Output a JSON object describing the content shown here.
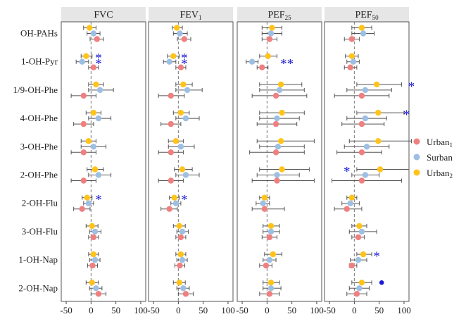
{
  "chart_data": {
    "type": "forest",
    "rows": [
      "OH-PAHs",
      "1-OH-Pyr",
      "1/9-OH-Phe",
      "4-OH-Phe",
      "3-OH-Phe",
      "2-OH-Phe",
      "2-OH-Flu",
      "3-OH-Flu",
      "1-OH-Nap",
      "2-OH-Nap"
    ],
    "x_ticks": [
      -50,
      0,
      50,
      100
    ],
    "xlim": [
      -60,
      110
    ],
    "colors": {
      "Urban1": "#f08080",
      "Surban": "#9dbfe3",
      "Urban2": "#ffc31a",
      "star": "#1a1ad6"
    },
    "legend": [
      {
        "key": "Urban1",
        "base": "Urban",
        "sub": "1"
      },
      {
        "key": "Surban",
        "base": "Surban",
        "sub": ""
      },
      {
        "key": "Urban2",
        "base": "Urban",
        "sub": "2"
      }
    ],
    "panels": [
      {
        "title": "FVC",
        "title_sub": "",
        "series": {
          "Urban2": [
            [
              -3,
              -15,
              10
            ],
            [
              -10,
              -20,
              2
            ],
            [
              10,
              -5,
              25
            ],
            [
              5,
              -10,
              20
            ],
            [
              -5,
              -20,
              10
            ],
            [
              8,
              -8,
              25
            ],
            [
              -8,
              -18,
              2
            ],
            [
              2,
              -10,
              14
            ],
            [
              5,
              -5,
              15
            ],
            [
              2,
              -10,
              15
            ]
          ],
          "Surban": [
            [
              5,
              -8,
              18
            ],
            [
              -18,
              -30,
              -5
            ],
            [
              18,
              -5,
              45
            ],
            [
              15,
              -5,
              40
            ],
            [
              5,
              -20,
              30
            ],
            [
              15,
              -5,
              40
            ],
            [
              -5,
              -15,
              5
            ],
            [
              8,
              -3,
              20
            ],
            [
              8,
              -3,
              18
            ],
            [
              10,
              -3,
              22
            ]
          ],
          "Urban1": [
            [
              12,
              -2,
              25
            ],
            [
              5,
              -5,
              15
            ],
            [
              -15,
              -40,
              10
            ],
            [
              -15,
              -35,
              5
            ],
            [
              -15,
              -40,
              10
            ],
            [
              -15,
              -40,
              10
            ],
            [
              -18,
              -35,
              -2
            ],
            [
              5,
              -5,
              15
            ],
            [
              3,
              -7,
              13
            ],
            [
              15,
              0,
              30
            ]
          ]
        },
        "stars": [
          {
            "row": 1,
            "series": "Urban2",
            "symbol": "*",
            "x": 15
          },
          {
            "row": 1,
            "series": "Surban",
            "symbol": "*",
            "x": 15
          },
          {
            "row": 6,
            "series": "Urban2",
            "symbol": "*",
            "x": 15
          }
        ]
      },
      {
        "title": "FEV",
        "title_sub": "1",
        "series": {
          "Urban2": [
            [
              -3,
              -12,
              8
            ],
            [
              -10,
              -22,
              2
            ],
            [
              10,
              -5,
              28
            ],
            [
              5,
              -10,
              22
            ],
            [
              -5,
              -20,
              10
            ],
            [
              8,
              -8,
              28
            ],
            [
              -8,
              -18,
              2
            ],
            [
              2,
              -10,
              14
            ],
            [
              5,
              -5,
              15
            ],
            [
              2,
              -10,
              14
            ]
          ],
          "Surban": [
            [
              3,
              -10,
              18
            ],
            [
              -18,
              -30,
              -5
            ],
            [
              18,
              -5,
              48
            ],
            [
              15,
              -5,
              42
            ],
            [
              5,
              -20,
              32
            ],
            [
              15,
              -5,
              42
            ],
            [
              -5,
              -15,
              5
            ],
            [
              8,
              -3,
              20
            ],
            [
              8,
              -3,
              18
            ],
            [
              10,
              -3,
              22
            ]
          ],
          "Urban1": [
            [
              12,
              -2,
              25
            ],
            [
              5,
              -5,
              15
            ],
            [
              -15,
              -40,
              12
            ],
            [
              -15,
              -35,
              5
            ],
            [
              -15,
              -40,
              10
            ],
            [
              -15,
              -40,
              10
            ],
            [
              -18,
              -35,
              -2
            ],
            [
              5,
              -5,
              15
            ],
            [
              3,
              -7,
              13
            ],
            [
              15,
              0,
              30
            ]
          ]
        },
        "stars": [
          {
            "row": 1,
            "series": "Urban2",
            "symbol": "*",
            "x": 12
          },
          {
            "row": 1,
            "series": "Surban",
            "symbol": "*",
            "x": 12
          },
          {
            "row": 6,
            "series": "Urban2",
            "symbol": "*",
            "x": 12
          }
        ]
      },
      {
        "title": "PEF",
        "title_sub": "25",
        "series": {
          "Urban2": [
            [
              10,
              -10,
              30
            ],
            [
              2,
              -15,
              20
            ],
            [
              28,
              -15,
              70
            ],
            [
              30,
              -15,
              75
            ],
            [
              28,
              -20,
              95
            ],
            [
              30,
              -15,
              85
            ],
            [
              -5,
              -15,
              5
            ],
            [
              8,
              -8,
              25
            ],
            [
              12,
              -5,
              30
            ],
            [
              8,
              -8,
              25
            ]
          ],
          "Surban": [
            [
              8,
              -10,
              30
            ],
            [
              -30,
              -42,
              -18
            ],
            [
              25,
              -15,
              75
            ],
            [
              20,
              -15,
              65
            ],
            [
              22,
              -15,
              75
            ],
            [
              20,
              -20,
              65
            ],
            [
              -8,
              -22,
              5
            ],
            [
              8,
              -8,
              25
            ],
            [
              5,
              -8,
              18
            ],
            [
              8,
              -8,
              28
            ]
          ],
          "Urban1": [
            [
              5,
              -10,
              20
            ],
            [
              -10,
              -20,
              2
            ],
            [
              18,
              -30,
              80
            ],
            [
              18,
              -20,
              60
            ],
            [
              18,
              -35,
              75
            ],
            [
              20,
              -30,
              95
            ],
            [
              -5,
              -30,
              35
            ],
            [
              5,
              -10,
              20
            ],
            [
              -2,
              -15,
              10
            ],
            [
              5,
              -15,
              25
            ]
          ]
        },
        "stars": [
          {
            "row": 1,
            "series": "Surban",
            "symbol": "**",
            "x": 40
          }
        ]
      },
      {
        "title": "PEF",
        "title_sub": "50",
        "series": {
          "Urban2": [
            [
              15,
              -5,
              35
            ],
            [
              -5,
              -18,
              8
            ],
            [
              45,
              5,
              95
            ],
            [
              48,
              5,
              100
            ],
            [
              48,
              -10,
              115
            ],
            [
              52,
              5,
              110
            ],
            [
              -5,
              -15,
              5
            ],
            [
              10,
              -5,
              25
            ],
            [
              18,
              5,
              35
            ],
            [
              15,
              -5,
              35
            ]
          ],
          "Surban": [
            [
              18,
              -5,
              40
            ],
            [
              -2,
              -15,
              10
            ],
            [
              22,
              -15,
              75
            ],
            [
              22,
              -15,
              65
            ],
            [
              25,
              -20,
              70
            ],
            [
              22,
              -5,
              50
            ],
            [
              -8,
              -25,
              10
            ],
            [
              15,
              -10,
              45
            ],
            [
              8,
              -8,
              25
            ],
            [
              10,
              -10,
              30
            ]
          ],
          "Urban1": [
            [
              -5,
              -20,
              10
            ],
            [
              -8,
              -20,
              5
            ],
            [
              15,
              -40,
              70
            ],
            [
              15,
              -25,
              60
            ],
            [
              15,
              -35,
              55
            ],
            [
              15,
              -45,
              95
            ],
            [
              -15,
              -40,
              15
            ],
            [
              8,
              -5,
              20
            ],
            [
              -5,
              -10,
              5
            ],
            [
              5,
              -15,
              25
            ]
          ]
        },
        "stars": [
          {
            "row": 2,
            "series": "Urban2",
            "symbol": "*",
            "x": 115
          },
          {
            "row": 3,
            "series": "Urban2",
            "symbol": "*",
            "x": 105
          },
          {
            "row": 5,
            "series": "Urban2",
            "symbol": "*",
            "x": -15
          },
          {
            "row": 8,
            "series": "Urban2",
            "symbol": "*",
            "x": 45
          },
          {
            "row": 9,
            "series": "Urban2",
            "symbol": "•",
            "x": 55
          }
        ]
      }
    ]
  }
}
